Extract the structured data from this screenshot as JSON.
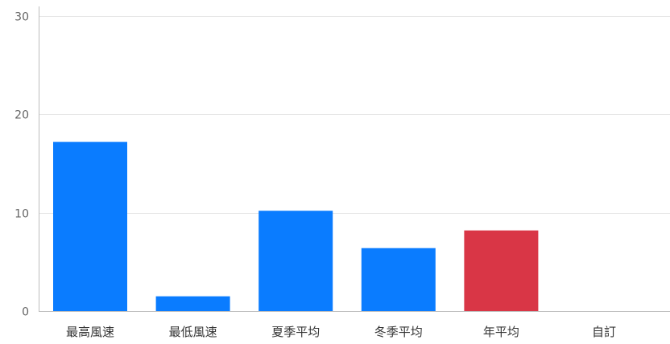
{
  "chart_data": {
    "type": "bar",
    "title": "",
    "xlabel": "",
    "ylabel": "",
    "categories": [
      "最高風速",
      "最低風速",
      "夏季平均",
      "冬季平均",
      "年平均",
      "自訂"
    ],
    "values": [
      17.2,
      1.5,
      10.2,
      6.4,
      8.2,
      0
    ],
    "colors": [
      "#0a7cff",
      "#0a7cff",
      "#0a7cff",
      "#0a7cff",
      "#d93646",
      "#0a7cff"
    ],
    "highlight_color": "#d93646",
    "bar_color": "#0a7cff",
    "ylim": [
      0,
      30
    ],
    "yticks": [
      0,
      10,
      20,
      30
    ],
    "ytick_labels": [
      "0",
      "10",
      "20",
      "30"
    ],
    "grid": true,
    "legend": "none"
  }
}
